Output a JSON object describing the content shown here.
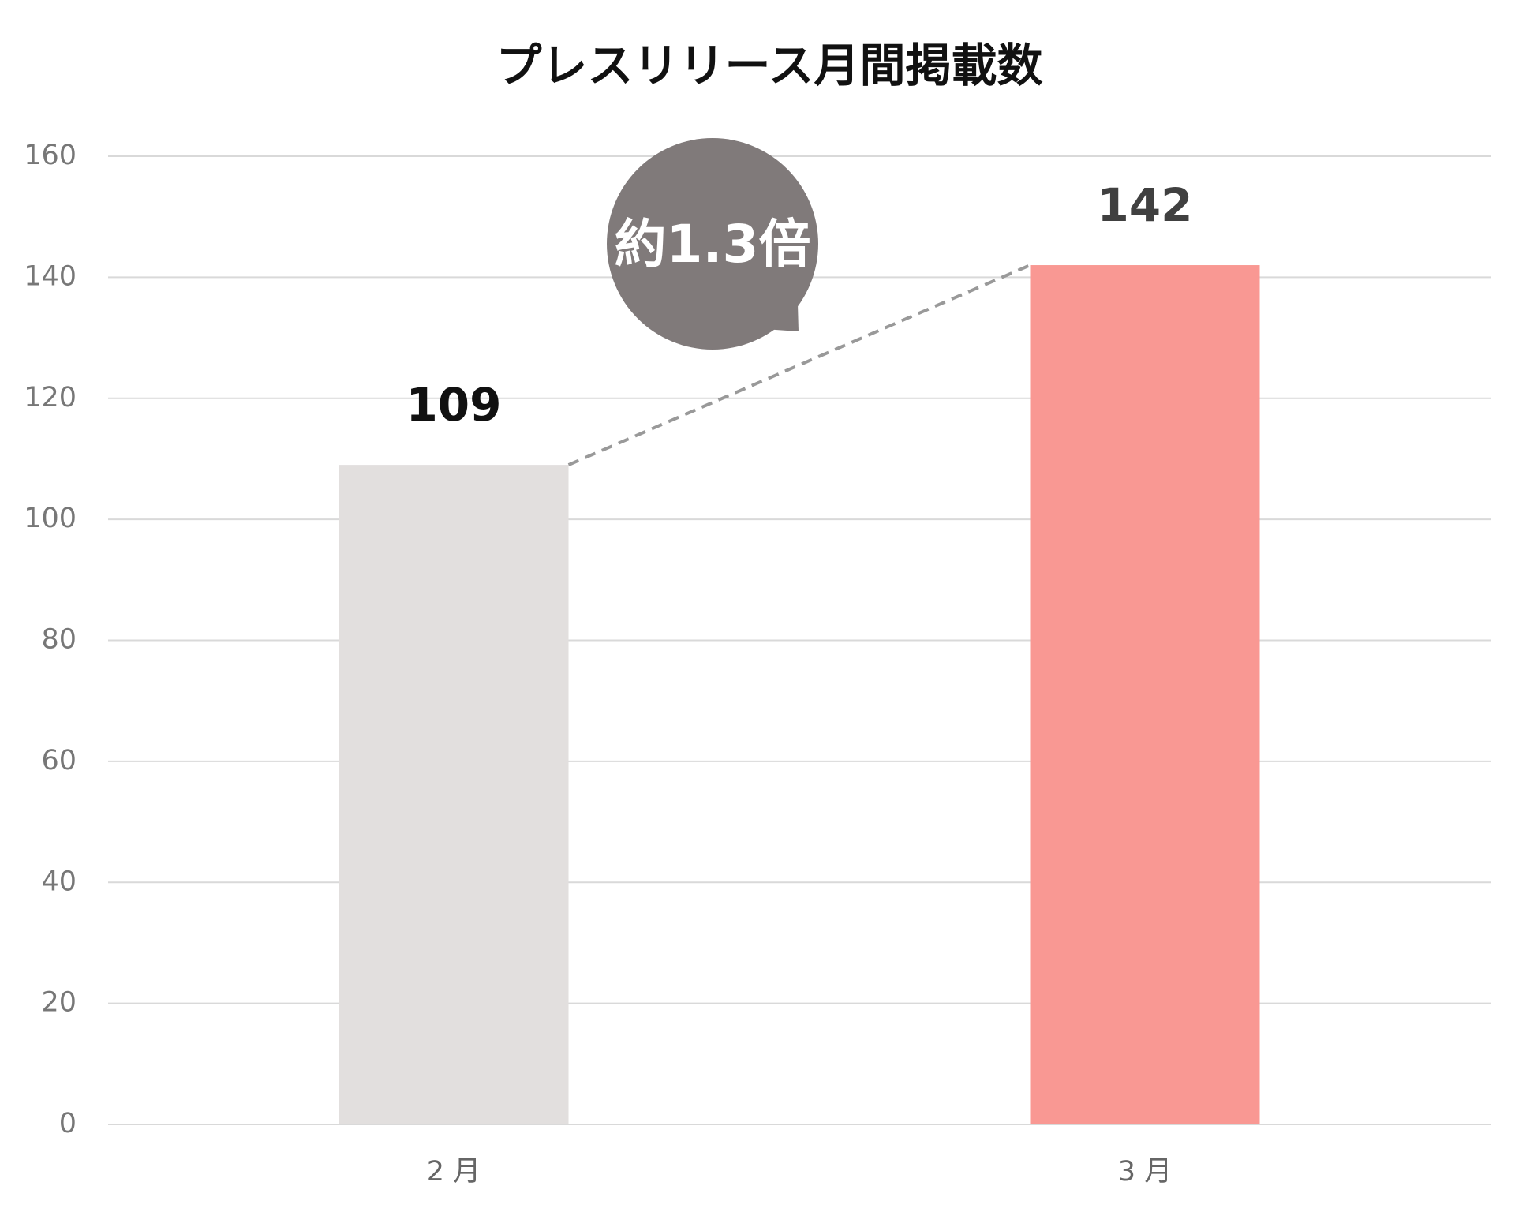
{
  "chart_data": {
    "type": "bar",
    "title": "プレスリリース月間掲載数",
    "categories": [
      "2 月",
      "3 月"
    ],
    "values": [
      109,
      142
    ],
    "colors": [
      "#e2dfde",
      "#f99893"
    ],
    "value_label_colors": [
      "#111111",
      "#404040"
    ],
    "ylim": [
      0,
      160
    ],
    "yticks": [
      0,
      20,
      40,
      60,
      80,
      100,
      120,
      140,
      160
    ],
    "grid": true,
    "annotation": "約1.3倍"
  }
}
